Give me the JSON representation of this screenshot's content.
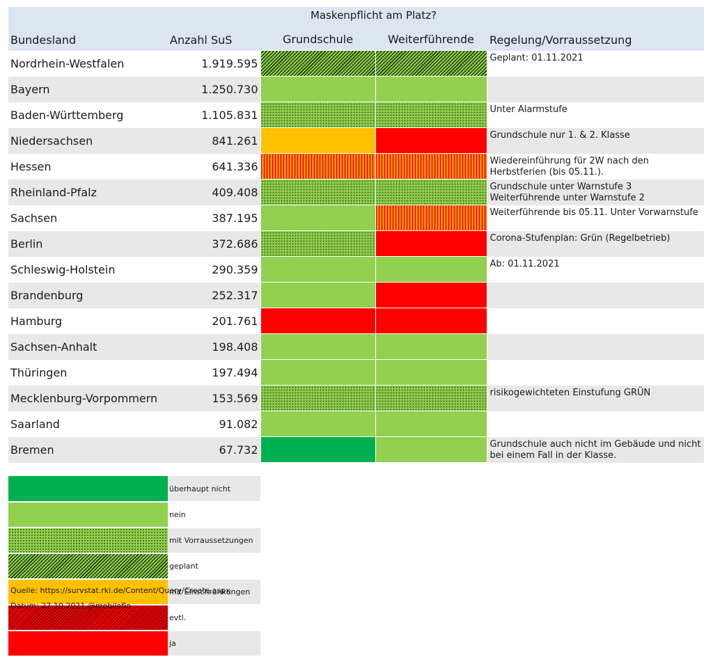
{
  "chart_data": {
    "type": "table",
    "header_group": "Maskenpflicht am Platz?",
    "columns": [
      "Bundesland",
      "Anzahl SuS",
      "Grundschule",
      "Weiterführende",
      "Regelung/Vorraussetzung"
    ],
    "rows": [
      {
        "land": "Nordrhein-Westfalen",
        "sus": "1.919.595",
        "grund": "geplant",
        "weiter": "geplant",
        "regel": "Geplant: 01.11.2021"
      },
      {
        "land": "Bayern",
        "sus": "1.250.730",
        "grund": "nein",
        "weiter": "nein",
        "regel": ""
      },
      {
        "land": "Baden-Württemberg",
        "sus": "1.105.831",
        "grund": "mit Vorraussetzungen",
        "weiter": "mit Vorraussetzungen",
        "regel": "Unter Alarmstufe"
      },
      {
        "land": "Niedersachsen",
        "sus": "841.261",
        "grund": "mit Einschränkungen",
        "weiter": "ja",
        "regel": "Grundschule nur 1. & 2. Klasse"
      },
      {
        "land": "Hessen",
        "sus": "641.336",
        "grund": "evtl.",
        "weiter": "evtl.",
        "regel": "Wiedereinführung für 2W nach den Herbstferien (bis 05.11.)."
      },
      {
        "land": "Rheinland-Pfalz",
        "sus": "409.408",
        "grund": "mit Vorraussetzungen",
        "weiter": "mit Vorraussetzungen",
        "regel": "Grundschule unter Warnstufe 3 Weiterführende unter Warnstufe 2"
      },
      {
        "land": "Sachsen",
        "sus": "387.195",
        "grund": "nein",
        "weiter": "evtl.",
        "regel": "Weiterführende bis 05.11. Unter Vorwarnstufe"
      },
      {
        "land": "Berlin",
        "sus": "372.686",
        "grund": "mit Vorraussetzungen",
        "weiter": "ja",
        "regel": "Corona-Stufenplan: Grün (Regelbetrieb)"
      },
      {
        "land": "Schleswig-Holstein",
        "sus": "290.359",
        "grund": "nein",
        "weiter": "nein",
        "regel": "Ab: 01.11.2021"
      },
      {
        "land": "Brandenburg",
        "sus": "252.317",
        "grund": "nein",
        "weiter": "ja",
        "regel": ""
      },
      {
        "land": "Hamburg",
        "sus": "201.761",
        "grund": "ja",
        "weiter": "ja",
        "regel": ""
      },
      {
        "land": "Sachsen-Anhalt",
        "sus": "198.408",
        "grund": "nein",
        "weiter": "nein",
        "regel": ""
      },
      {
        "land": "Thüringen",
        "sus": "197.494",
        "grund": "nein",
        "weiter": "nein",
        "regel": ""
      },
      {
        "land": "Mecklenburg-Vorpommern",
        "sus": "153.569",
        "grund": "mit Vorraussetzungen",
        "weiter": "mit Vorraussetzungen",
        "regel": "risikogewichteten Einstufung GRÜN"
      },
      {
        "land": "Saarland",
        "sus": "91.082",
        "grund": "nein",
        "weiter": "nein",
        "regel": ""
      },
      {
        "land": "Bremen",
        "sus": "67.732",
        "grund": "überhaupt nicht",
        "weiter": "nein",
        "regel": "Grundschule auch nicht im Gebäude und nicht bei einem Fall in der Klasse."
      }
    ],
    "legend": [
      {
        "label": "überhaupt nicht",
        "color": "#00b050",
        "pattern": "solid"
      },
      {
        "label": "nein",
        "color": "#92d050",
        "pattern": "solid"
      },
      {
        "label": "mit Vorraussetzungen",
        "color": "#92d050",
        "pattern": "dotted"
      },
      {
        "label": "geplant",
        "color": "#92d050",
        "pattern": "diagonal-stripes"
      },
      {
        "label": "mit Einschränkungen",
        "color": "#ffc000",
        "pattern": "solid"
      },
      {
        "label": "evtl.",
        "color": "#ff0000",
        "pattern": "diagonal-stripes"
      },
      {
        "label": "ja",
        "color": "#ff0000",
        "pattern": "solid"
      }
    ]
  },
  "source": "Quelle: https://survstat.rki.de/Content/Query/Create.aspx",
  "date": "Datum: 27.10.2021 @mobileflo"
}
